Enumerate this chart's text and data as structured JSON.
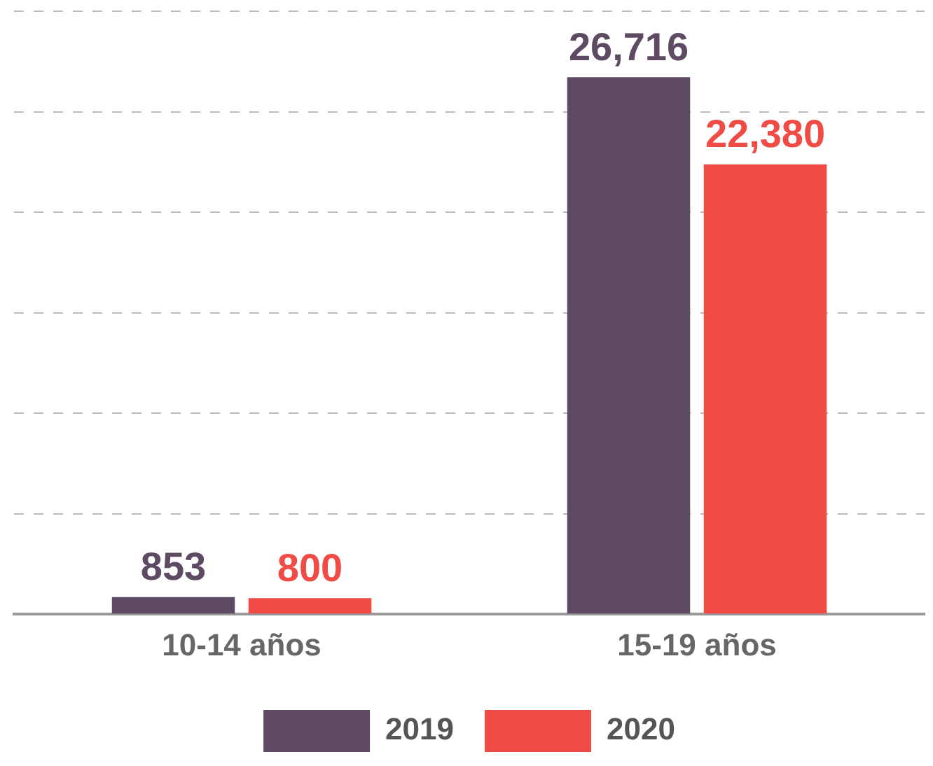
{
  "chart_data": {
    "type": "bar",
    "categories": [
      "10-14 años",
      "15-19 años"
    ],
    "series": [
      {
        "name": "2019",
        "color": "#5e4a63",
        "values": [
          853,
          26716
        ],
        "value_labels": [
          "853",
          "26,716"
        ]
      },
      {
        "name": "2020",
        "color": "#f04b45",
        "values": [
          800,
          22380
        ],
        "value_labels": [
          "800",
          "22,380"
        ]
      }
    ],
    "ylim": [
      0,
      30000
    ],
    "yticks": [
      0,
      {
        "value": 5000,
        "label": null
      },
      {
        "value": 10000,
        "label": null
      },
      {
        "value": 15000,
        "label": null
      },
      {
        "value": 20000,
        "label": null
      },
      {
        "value": 25000,
        "label": null
      },
      {
        "value": 30000,
        "label": null
      }
    ],
    "tick_labels": "x",
    "grid": "y",
    "legend": "bottom"
  }
}
